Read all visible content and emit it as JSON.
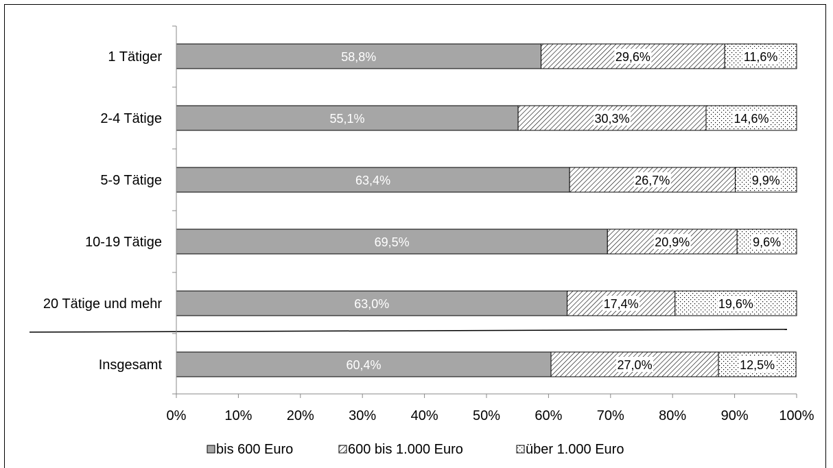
{
  "chart_data": {
    "type": "bar",
    "orientation": "horizontal",
    "stacked": "percent",
    "categories": [
      "1 Tätiger",
      "2-4 Tätige",
      "5-9 Tätige",
      "10-19 Tätige",
      "20 Tätige und mehr",
      "Insgesamt"
    ],
    "series": [
      {
        "name": "bis 600 Euro",
        "values": [
          58.8,
          55.1,
          63.4,
          69.5,
          63.0,
          60.4
        ],
        "labels": [
          "58,8%",
          "55,1%",
          "63,4%",
          "69,5%",
          "63,0%",
          "60,4%"
        ],
        "color": "#a6a6a6",
        "pattern": "solid"
      },
      {
        "name": "600 bis 1.000 Euro",
        "values": [
          29.6,
          30.3,
          26.7,
          20.9,
          17.4,
          27.0
        ],
        "labels": [
          "29,6%",
          "30,3%",
          "26,7%",
          "20,9%",
          "17,4%",
          "27,0%"
        ],
        "color": "#ffffff",
        "pattern": "diagonal-hatch"
      },
      {
        "name": "über 1.000 Euro",
        "values": [
          11.6,
          14.6,
          9.9,
          9.6,
          19.6,
          12.5
        ],
        "labels": [
          "11,6%",
          "14,6%",
          "9,9%",
          "9,6%",
          "19,6%",
          "12,5%"
        ],
        "color": "#ffffff",
        "pattern": "dotted"
      }
    ],
    "xlim": [
      0,
      100
    ],
    "x_ticks": [
      "0%",
      "10%",
      "20%",
      "30%",
      "40%",
      "50%",
      "60%",
      "70%",
      "80%",
      "90%",
      "100%"
    ],
    "separator_before_category": "Insgesamt",
    "legend": "bottom",
    "grid": false
  }
}
